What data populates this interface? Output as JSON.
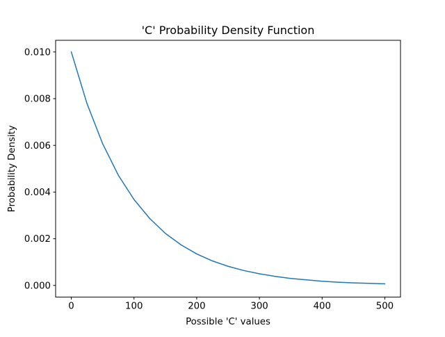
{
  "chart_data": {
    "type": "line",
    "title": "'C' Probability Density Function",
    "xlabel": "Possible 'C' values",
    "ylabel": "Probability Density",
    "xlim": [
      -25,
      525
    ],
    "ylim": [
      -0.0005,
      0.0105
    ],
    "x_ticks": [
      0,
      100,
      200,
      300,
      400,
      500
    ],
    "x_tick_labels": [
      "0",
      "100",
      "200",
      "300",
      "400",
      "500"
    ],
    "y_ticks": [
      0.0,
      0.002,
      0.004,
      0.006,
      0.008,
      0.01
    ],
    "y_tick_labels": [
      "0.000",
      "0.002",
      "0.004",
      "0.006",
      "0.008",
      "0.010"
    ],
    "grid": false,
    "legend": "none",
    "series": [
      {
        "color": "#1f77b4",
        "x": [
          0,
          25,
          50,
          75,
          100,
          125,
          150,
          175,
          200,
          225,
          250,
          275,
          300,
          325,
          350,
          375,
          400,
          425,
          450,
          475,
          500
        ],
        "y": [
          0.01,
          0.00779,
          0.00607,
          0.00472,
          0.00368,
          0.00287,
          0.00223,
          0.00174,
          0.00135,
          0.00105,
          0.00082,
          0.00064,
          0.0005,
          0.00039,
          0.0003,
          0.00024,
          0.00018,
          0.00014,
          0.00011,
          9e-05,
          7e-05
        ]
      }
    ]
  }
}
